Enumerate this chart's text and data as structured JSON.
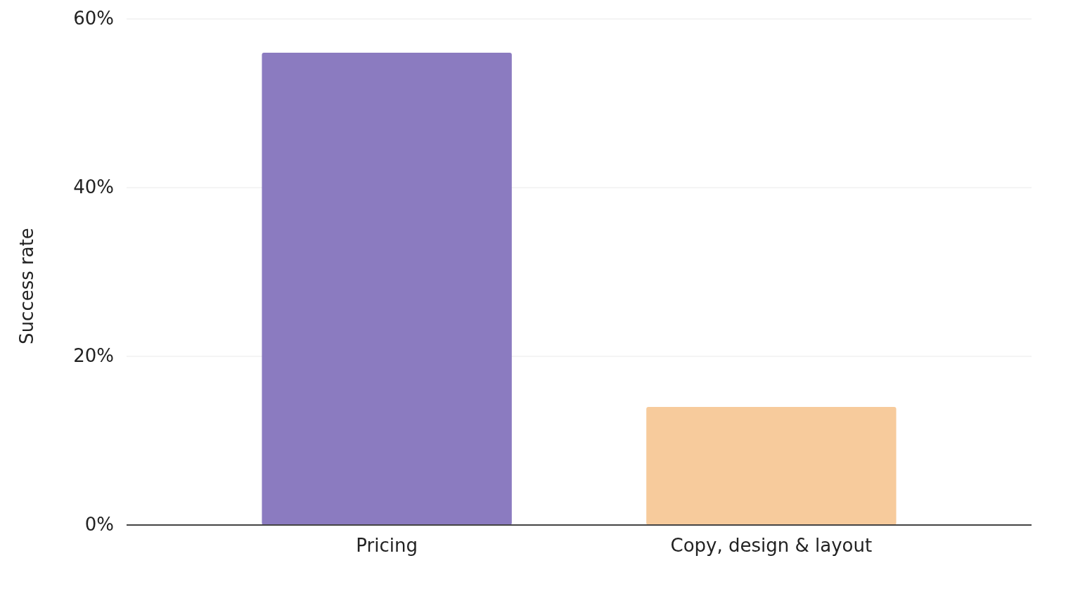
{
  "chart_data": {
    "type": "bar",
    "ylabel": "Success rate",
    "categories": [
      "Pricing",
      "Copy, design & layout"
    ],
    "values": [
      56,
      14
    ],
    "colors": [
      "#8b7bc0",
      "#f7cb9c"
    ],
    "ylim": [
      0,
      60
    ],
    "yticks": [
      {
        "value": 0,
        "label": "0%"
      },
      {
        "value": 20,
        "label": "20%"
      },
      {
        "value": 40,
        "label": "40%"
      },
      {
        "value": 60,
        "label": "60%"
      }
    ],
    "grid": "y"
  }
}
